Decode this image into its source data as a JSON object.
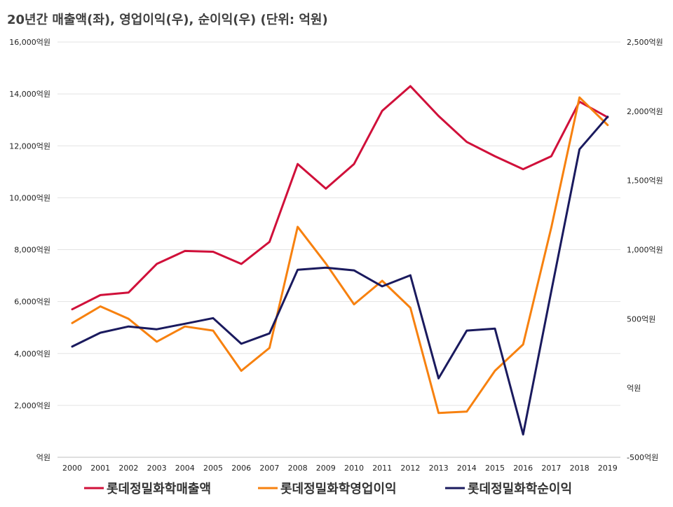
{
  "chart_data": {
    "type": "line",
    "title": "20년간 매출액(좌), 영업이익(우), 순이익(우) (단위: 억원)",
    "categories": [
      "2000",
      "2001",
      "2002",
      "2003",
      "2004",
      "2005",
      "2006",
      "2007",
      "2008",
      "2009",
      "2010",
      "2011",
      "2012",
      "2013",
      "2014",
      "2015",
      "2016",
      "2017",
      "2018",
      "2019"
    ],
    "y_left": {
      "ylim": [
        0,
        16000
      ],
      "ticks": [
        0,
        2000,
        4000,
        6000,
        8000,
        10000,
        12000,
        14000,
        16000
      ],
      "tick_labels": [
        "억원",
        "2,000억원",
        "4,000억원",
        "6,000억원",
        "8,000억원",
        "10,000억원",
        "12,000억원",
        "14,000억원",
        "16,000억원"
      ]
    },
    "y_right": {
      "ylim": [
        -500,
        2500
      ],
      "ticks": [
        -500,
        0,
        500,
        1000,
        1500,
        2000,
        2500
      ],
      "tick_labels": [
        "-500억원",
        "억원",
        "500억원",
        "1,000억원",
        "1,500억원",
        "2,000억원",
        "2,500억원"
      ]
    },
    "grid": true,
    "legend_position": "bottom",
    "series": [
      {
        "name": "롯데정밀화학매출액",
        "axis": "left",
        "color": "#d0103a",
        "values": [
          5700,
          6250,
          6350,
          7450,
          7950,
          7920,
          7450,
          8300,
          11300,
          10350,
          11300,
          13350,
          14300,
          13150,
          12150,
          11600,
          11100,
          11600,
          13700,
          13100
        ]
      },
      {
        "name": "롯데정밀화학영업이익",
        "axis": "right",
        "color": "#f7810f",
        "values": [
          470,
          590,
          500,
          335,
          445,
          415,
          125,
          290,
          1165,
          900,
          605,
          775,
          580,
          -180,
          -170,
          125,
          315,
          1160,
          2100,
          1900
        ]
      },
      {
        "name": "롯데정밀화학순이익",
        "axis": "right",
        "color": "#1a1a5e",
        "values": [
          300,
          400,
          445,
          425,
          465,
          505,
          320,
          395,
          855,
          870,
          850,
          735,
          815,
          70,
          415,
          430,
          -335,
          700,
          1725,
          1960
        ]
      }
    ]
  }
}
